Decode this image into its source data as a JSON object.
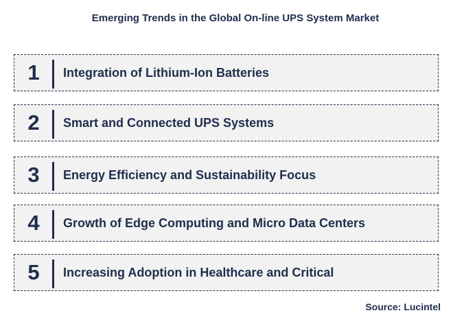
{
  "title": "Emerging Trends in the Global On-line UPS System Market",
  "trends": [
    {
      "number": "1",
      "label": "Integration of Lithium-Ion Batteries"
    },
    {
      "number": "2",
      "label": "Smart and Connected UPS Systems"
    },
    {
      "number": "3",
      "label": "Energy Efficiency and Sustainability Focus"
    },
    {
      "number": "4",
      "label": "Growth of Edge Computing and Micro Data Centers"
    },
    {
      "number": "5",
      "label": "Increasing Adoption in Healthcare and Critical"
    }
  ],
  "source": "Source: Lucintel",
  "colors": {
    "text": "#1f2d4d",
    "box_fill": "#f2f2f2",
    "background": "#ffffff"
  }
}
